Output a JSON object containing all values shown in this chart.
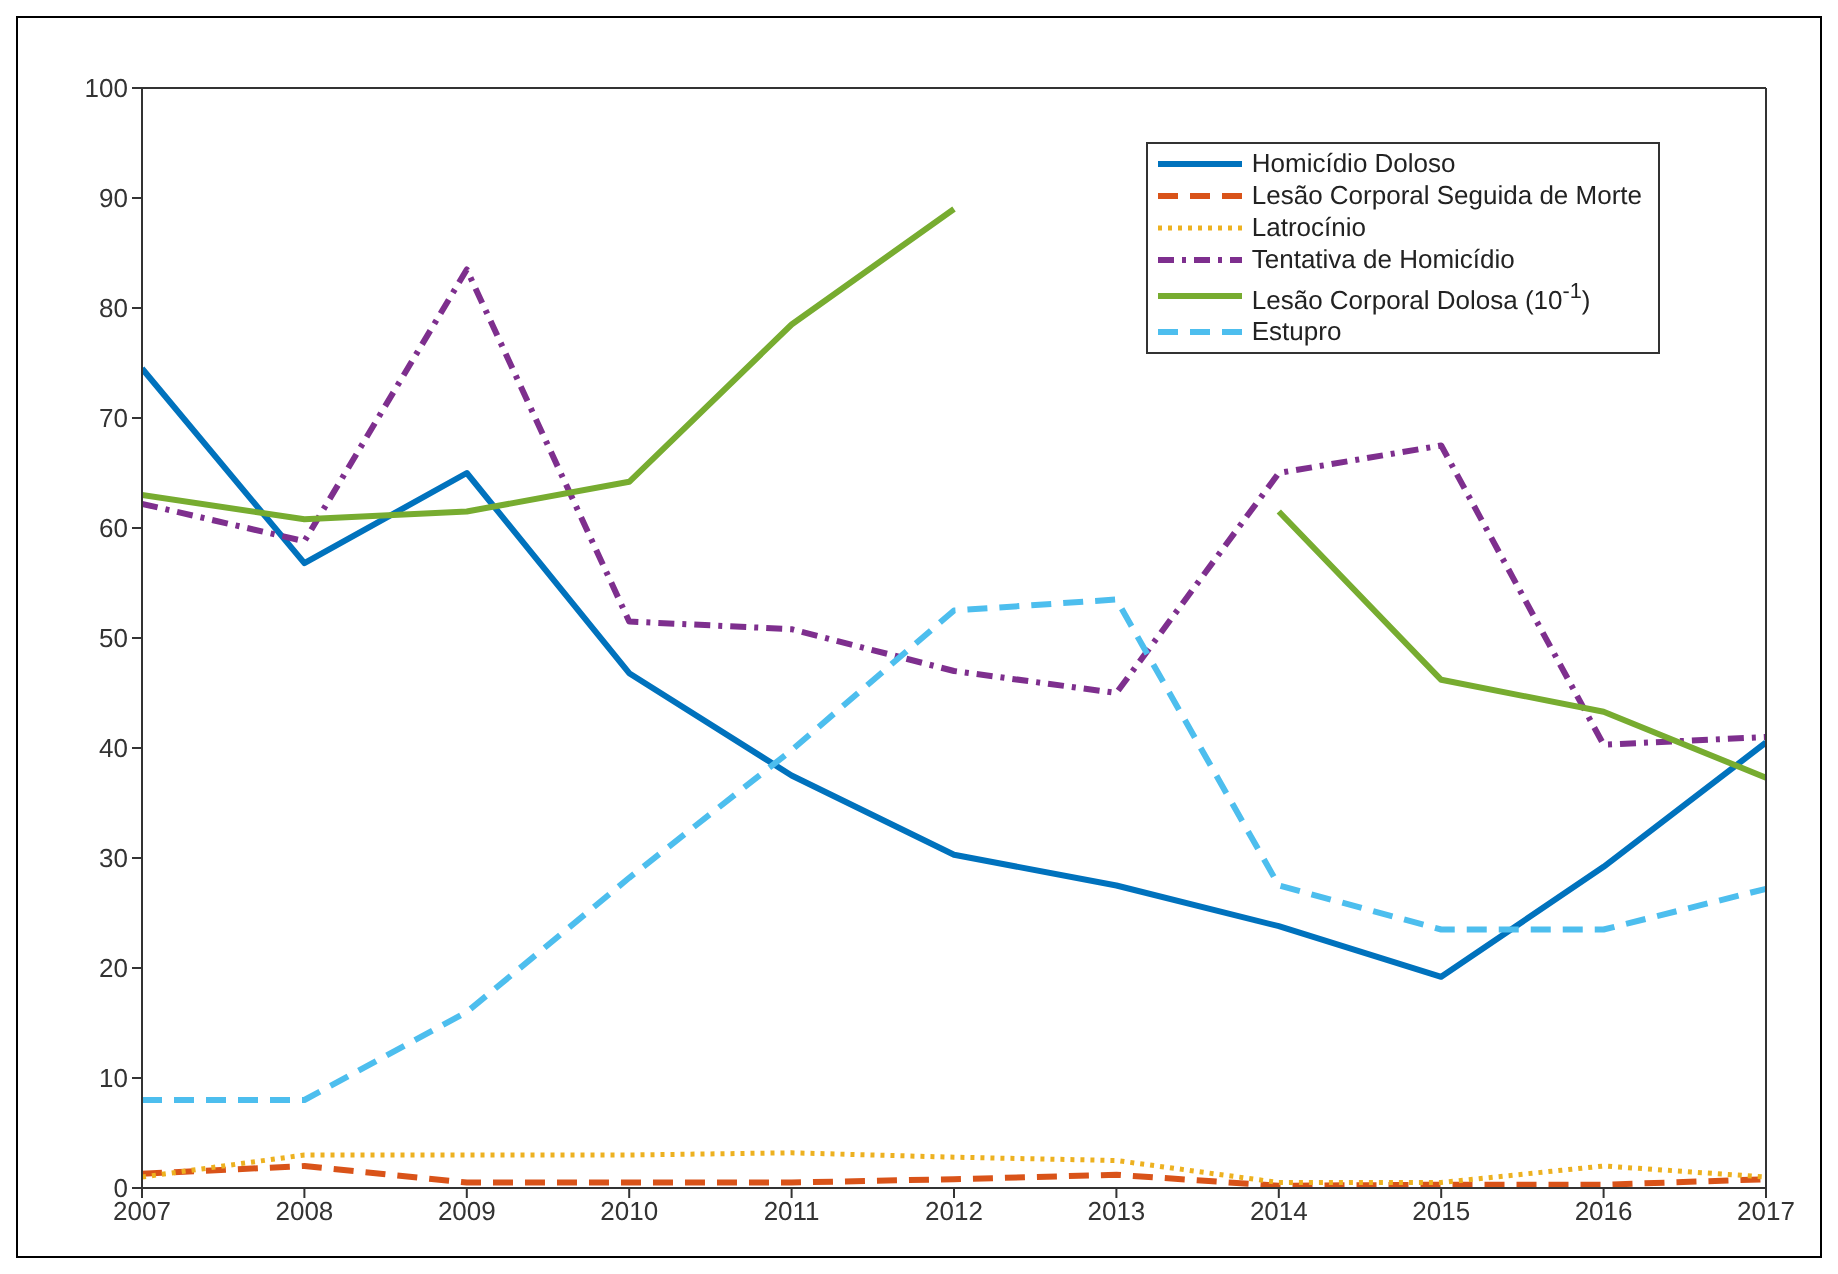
{
  "chart_data": {
    "type": "line",
    "x": [
      2007,
      2008,
      2009,
      2010,
      2011,
      2012,
      2013,
      2014,
      2015,
      2016,
      2017
    ],
    "xlim": [
      2007,
      2017
    ],
    "xticks": [
      2007,
      2008,
      2009,
      2010,
      2011,
      2012,
      2013,
      2014,
      2015,
      2016,
      2017
    ],
    "ylim": [
      0,
      100
    ],
    "yticks": [
      0,
      10,
      20,
      30,
      40,
      50,
      60,
      70,
      80,
      90,
      100
    ],
    "legend": "top right",
    "grid": false,
    "marker": "none",
    "series": [
      {
        "name": "Homicídio Doloso",
        "color": "#0072bd",
        "line_style": "solid",
        "values": [
          74.5,
          56.8,
          65,
          46.8,
          37.5,
          30.3,
          27.5,
          23.8,
          19.2,
          29.2,
          40.5
        ]
      },
      {
        "name": "Lesão Corporal Seguida de Morte",
        "color": "#d95319",
        "line_style": "dashed",
        "values": [
          1.3,
          2,
          0.5,
          0.5,
          0.5,
          0.8,
          1.2,
          0.2,
          0.3,
          0.3,
          0.8
        ]
      },
      {
        "name": "Latrocínio",
        "color": "#edb120",
        "line_style": "dotted",
        "values": [
          1,
          3,
          3,
          3,
          3.2,
          2.8,
          2.5,
          0.5,
          0.5,
          2,
          1
        ]
      },
      {
        "name": "Tentativa de Homicídio",
        "color": "#7e2f8e",
        "line_style": "dashdot",
        "values": [
          62.2,
          58.8,
          83.5,
          51.5,
          50.8,
          47,
          45,
          65,
          67.5,
          40.3,
          41
        ]
      },
      {
        "name": "Lesão Corporal Dolosa (10$^{-1}$)",
        "color": "#77ac30",
        "line_style": "solid",
        "values": [
          63,
          60.8,
          61.5,
          64.2,
          78.5,
          89,
          null,
          61.5,
          46.2,
          43.3,
          37.3
        ]
      },
      {
        "name": "Estupro",
        "color": "#4dbeee",
        "line_style": "dashed",
        "values": [
          8,
          8,
          16,
          28.2,
          39.8,
          52.5,
          53.5,
          27.5,
          23.5,
          23.5,
          27.2
        ]
      }
    ]
  }
}
